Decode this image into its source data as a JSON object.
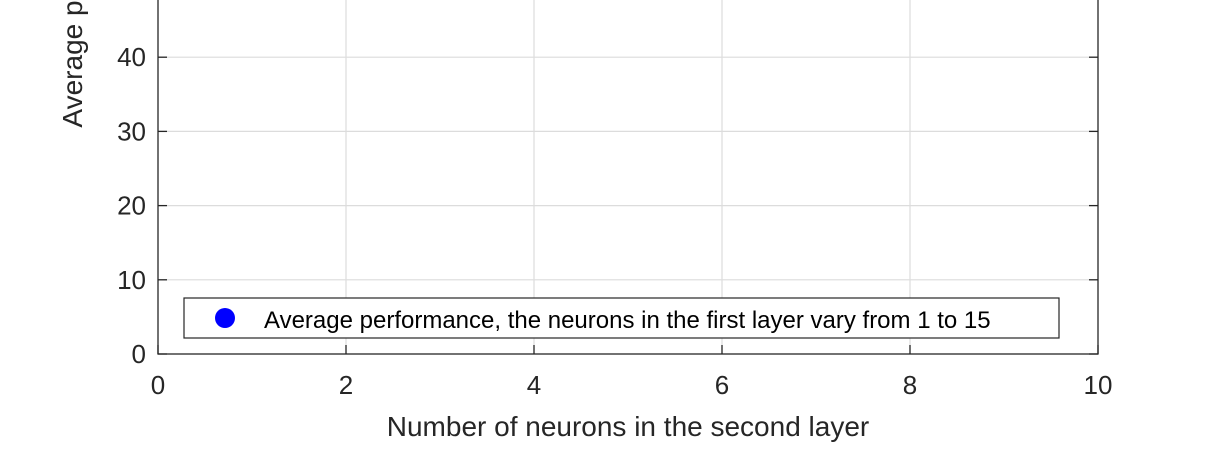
{
  "chart_data": {
    "type": "scatter",
    "title": "",
    "xlabel": "Number of neurons in the second layer",
    "ylabel": "Average p",
    "xlim": [
      0,
      10
    ],
    "ylim": [
      0,
      50
    ],
    "xticks": [
      0,
      2,
      4,
      6,
      8,
      10
    ],
    "yticks": [
      0,
      10,
      20,
      30,
      40
    ],
    "grid": true,
    "legend_position": "bottom-left",
    "series": [
      {
        "name": "Average performance, the neurons in the first layer vary from 1 to 15",
        "color": "#0000ff",
        "marker": "circle",
        "x": [],
        "y": []
      }
    ]
  }
}
